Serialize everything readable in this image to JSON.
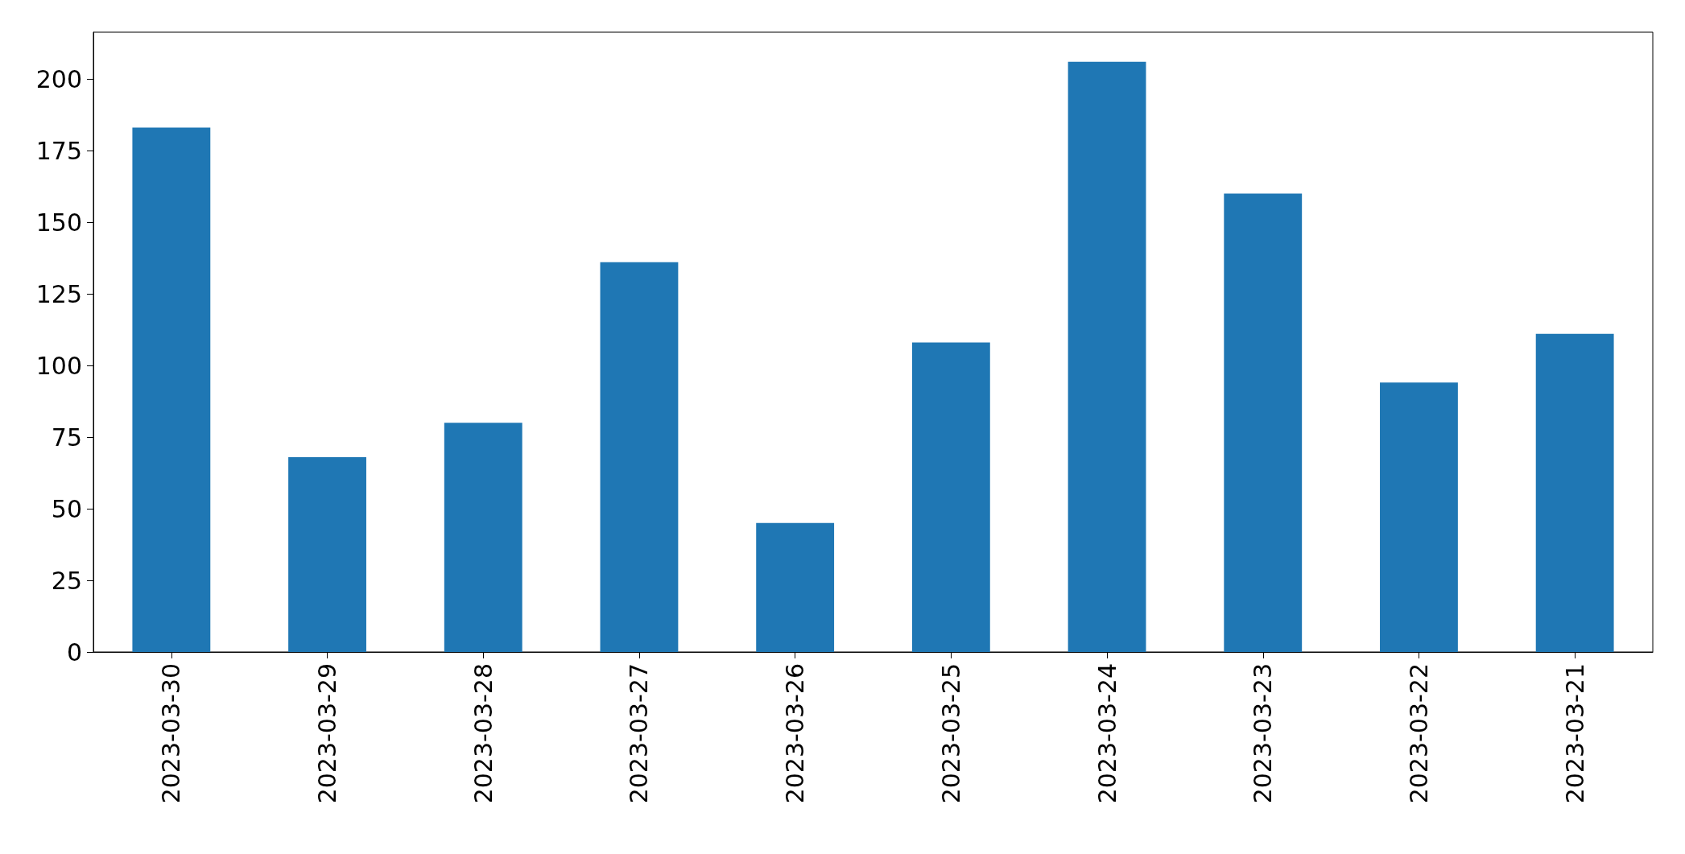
{
  "chart_data": {
    "type": "bar",
    "categories": [
      "2023-03-30",
      "2023-03-29",
      "2023-03-28",
      "2023-03-27",
      "2023-03-26",
      "2023-03-25",
      "2023-03-24",
      "2023-03-23",
      "2023-03-22",
      "2023-03-21"
    ],
    "values": [
      183,
      68,
      80,
      136,
      45,
      108,
      206,
      160,
      94,
      111
    ],
    "color": "#1f77b4",
    "ylim": [
      0,
      216.3
    ],
    "yticks": [
      0,
      25,
      50,
      75,
      100,
      125,
      150,
      175,
      200
    ],
    "grid": false
  }
}
